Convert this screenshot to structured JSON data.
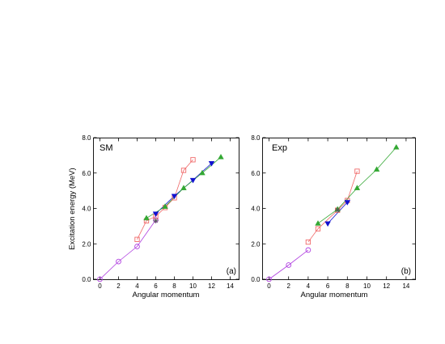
{
  "figure": {
    "y_axis_label": "Excitation energy (MeV)",
    "colors": {
      "magenta": "#b040e0",
      "red": "#f06a6a",
      "blue": "#1010d0",
      "green": "#33a833",
      "gray": "#555555"
    }
  },
  "chart_data": [
    {
      "type": "scatter",
      "panel_label": "(a)",
      "corner_title": "SM",
      "xlabel": "Angular momentum",
      "ylabel": "Excitation energy (MeV)",
      "xlim": [
        -1,
        15
      ],
      "ylim": [
        0,
        8
      ],
      "x_ticks": [
        "0",
        "2",
        "4",
        "6",
        "8",
        "10",
        "12",
        "14"
      ],
      "y_ticks": [
        "0.0",
        "2.0",
        "4.0",
        "6.0",
        "8.0"
      ],
      "series": [
        {
          "marker": "circle",
          "color": "#b040e0",
          "x": [
            0,
            2,
            4,
            6
          ],
          "y": [
            0.0,
            1.0,
            1.85,
            3.35
          ]
        },
        {
          "marker": "square",
          "color": "#f06a6a",
          "x": [
            4,
            5,
            6,
            7,
            8,
            9,
            10
          ],
          "y": [
            2.25,
            3.3,
            3.55,
            4.05,
            4.6,
            6.15,
            6.75
          ]
        },
        {
          "marker": "triangle-down",
          "color": "#1010d0",
          "x": [
            6,
            8,
            10,
            12
          ],
          "y": [
            3.7,
            4.7,
            5.6,
            6.55
          ]
        },
        {
          "marker": "triangle-up",
          "color": "#33a833",
          "x": [
            5,
            7,
            9,
            11,
            13
          ],
          "y": [
            3.45,
            4.1,
            5.15,
            6.0,
            6.9
          ]
        },
        {
          "marker": "star",
          "color": "#555555",
          "x": [
            6
          ],
          "y": [
            3.3
          ]
        }
      ]
    },
    {
      "type": "scatter",
      "panel_label": "(b)",
      "corner_title": "Exp",
      "xlabel": "Angular momentum",
      "ylabel": "",
      "xlim": [
        -1,
        15
      ],
      "ylim": [
        0,
        8
      ],
      "x_ticks": [
        "0",
        "2",
        "4",
        "6",
        "8",
        "10",
        "12",
        "14"
      ],
      "y_ticks": [
        "0.0",
        "2.0",
        "4.0",
        "6.0",
        "8.0"
      ],
      "series": [
        {
          "marker": "circle",
          "color": "#b040e0",
          "x": [
            0,
            2,
            4
          ],
          "y": [
            0.0,
            0.8,
            1.65
          ]
        },
        {
          "marker": "square",
          "color": "#f06a6a",
          "x": [
            4,
            5,
            7,
            8,
            9
          ],
          "y": [
            2.1,
            2.85,
            3.9,
            4.45,
            6.1
          ]
        },
        {
          "marker": "triangle-down",
          "color": "#1010d0",
          "x": [
            6,
            8
          ],
          "y": [
            3.15,
            4.35
          ]
        },
        {
          "marker": "triangle-up",
          "color": "#33a833",
          "x": [
            5,
            7,
            9,
            11,
            13
          ],
          "y": [
            3.15,
            3.95,
            5.15,
            6.2,
            7.45
          ]
        },
        {
          "marker": "star",
          "color": "#555555",
          "x": [
            7
          ],
          "y": [
            3.9
          ]
        }
      ]
    }
  ]
}
